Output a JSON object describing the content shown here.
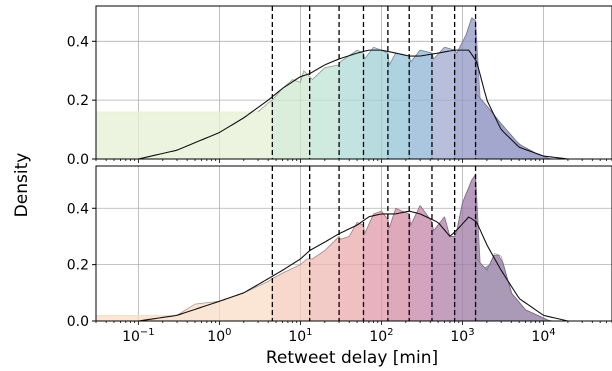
{
  "chart_data": {
    "type": "area",
    "xlabel": "Retweet delay [min]",
    "ylabel": "Density",
    "x_scale": "log",
    "xlim": [
      0.03,
      70000
    ],
    "x_ticks": [
      {
        "value": 0.1,
        "base": "10",
        "exp": "−1"
      },
      {
        "value": 1,
        "base": "10",
        "exp": "0"
      },
      {
        "value": 10,
        "base": "10",
        "exp": "1"
      },
      {
        "value": 100,
        "base": "10",
        "exp": "2"
      },
      {
        "value": 1000,
        "base": "10",
        "exp": "3"
      },
      {
        "value": 10000,
        "base": "10",
        "exp": "4"
      }
    ],
    "grid": true,
    "quantile_lines": [
      4.5,
      13,
      30,
      60,
      120,
      220,
      420,
      800,
      1450
    ],
    "panels": [
      {
        "name": "top",
        "ylim": [
          0,
          0.52
        ],
        "y_ticks": [
          {
            "value": 0,
            "label": "0.0"
          },
          {
            "value": 0.2,
            "label": "0.2"
          },
          {
            "value": 0.4,
            "label": "0.4"
          }
        ],
        "colors": [
          "#e6f0d4",
          "#cfe8cf",
          "#bfe3d4",
          "#aedad6",
          "#a0cfd6",
          "#94c3d6",
          "#8fb3d4",
          "#a0aacf",
          "#9096c4",
          "#8489bd"
        ],
        "kde": [
          [
            0.1,
            0.0
          ],
          [
            0.3,
            0.03
          ],
          [
            1,
            0.09
          ],
          [
            2,
            0.14
          ],
          [
            4,
            0.2
          ],
          [
            6,
            0.24
          ],
          [
            10,
            0.28
          ],
          [
            13,
            0.29
          ],
          [
            20,
            0.32
          ],
          [
            30,
            0.34
          ],
          [
            50,
            0.36
          ],
          [
            70,
            0.37
          ],
          [
            100,
            0.37
          ],
          [
            150,
            0.36
          ],
          [
            220,
            0.35
          ],
          [
            300,
            0.35
          ],
          [
            500,
            0.36
          ],
          [
            800,
            0.37
          ],
          [
            1200,
            0.37
          ],
          [
            1500,
            0.33
          ],
          [
            2000,
            0.2
          ],
          [
            3000,
            0.1
          ],
          [
            5000,
            0.04
          ],
          [
            10000,
            0.01
          ],
          [
            20000,
            0.0
          ]
        ],
        "hist": [
          [
            3,
            0.16
          ],
          [
            4,
            0.19
          ],
          [
            4.5,
            0.2
          ],
          [
            6,
            0.24
          ],
          [
            8,
            0.27
          ],
          [
            10,
            0.26
          ],
          [
            11,
            0.3
          ],
          [
            13,
            0.28
          ],
          [
            14,
            0.27
          ],
          [
            20,
            0.31
          ],
          [
            30,
            0.32
          ],
          [
            31,
            0.33
          ],
          [
            50,
            0.37
          ],
          [
            60,
            0.36
          ],
          [
            62,
            0.34
          ],
          [
            80,
            0.38
          ],
          [
            120,
            0.36
          ],
          [
            125,
            0.32
          ],
          [
            150,
            0.36
          ],
          [
            220,
            0.35
          ],
          [
            230,
            0.33
          ],
          [
            300,
            0.37
          ],
          [
            420,
            0.36
          ],
          [
            440,
            0.34
          ],
          [
            600,
            0.38
          ],
          [
            800,
            0.37
          ],
          [
            850,
            0.36
          ],
          [
            1100,
            0.42
          ],
          [
            1300,
            0.48
          ],
          [
            1450,
            0.47
          ],
          [
            1500,
            0.22
          ],
          [
            2000,
            0.18
          ],
          [
            3000,
            0.12
          ],
          [
            5000,
            0.05
          ],
          [
            8000,
            0.02
          ],
          [
            12000,
            0.0
          ]
        ]
      },
      {
        "name": "bottom",
        "ylim": [
          0,
          0.55
        ],
        "y_ticks": [
          {
            "value": 0,
            "label": "0.0"
          },
          {
            "value": 0.2,
            "label": "0.2"
          },
          {
            "value": 0.4,
            "label": "0.4"
          }
        ],
        "colors": [
          "#f9dcc6",
          "#f5cbbb",
          "#efbab3",
          "#e9a9ac",
          "#e09aa8",
          "#d48ca6",
          "#c585a8",
          "#b27fa8",
          "#9f7aa6",
          "#8d779f"
        ],
        "kde": [
          [
            0.1,
            0.0
          ],
          [
            0.3,
            0.02
          ],
          [
            1,
            0.07
          ],
          [
            2,
            0.1
          ],
          [
            4,
            0.15
          ],
          [
            6,
            0.18
          ],
          [
            10,
            0.22
          ],
          [
            13,
            0.25
          ],
          [
            20,
            0.28
          ],
          [
            30,
            0.31
          ],
          [
            50,
            0.34
          ],
          [
            70,
            0.37
          ],
          [
            100,
            0.38
          ],
          [
            150,
            0.38
          ],
          [
            220,
            0.39
          ],
          [
            300,
            0.38
          ],
          [
            500,
            0.35
          ],
          [
            700,
            0.3
          ],
          [
            900,
            0.33
          ],
          [
            1200,
            0.37
          ],
          [
            1500,
            0.35
          ],
          [
            2000,
            0.27
          ],
          [
            3000,
            0.18
          ],
          [
            5000,
            0.08
          ],
          [
            10000,
            0.02
          ],
          [
            20000,
            0.0
          ]
        ],
        "hist": [
          [
            0.3,
            0.02
          ],
          [
            0.5,
            0.06
          ],
          [
            1,
            0.07
          ],
          [
            2,
            0.1
          ],
          [
            4,
            0.14
          ],
          [
            4.5,
            0.15
          ],
          [
            6,
            0.17
          ],
          [
            10,
            0.2
          ],
          [
            12,
            0.22
          ],
          [
            13,
            0.22
          ],
          [
            14,
            0.22
          ],
          [
            20,
            0.25
          ],
          [
            30,
            0.3
          ],
          [
            31,
            0.29
          ],
          [
            40,
            0.3
          ],
          [
            50,
            0.35
          ],
          [
            60,
            0.34
          ],
          [
            62,
            0.31
          ],
          [
            80,
            0.38
          ],
          [
            100,
            0.39
          ],
          [
            120,
            0.36
          ],
          [
            125,
            0.33
          ],
          [
            150,
            0.4
          ],
          [
            180,
            0.39
          ],
          [
            220,
            0.38
          ],
          [
            230,
            0.34
          ],
          [
            300,
            0.41
          ],
          [
            400,
            0.36
          ],
          [
            420,
            0.35
          ],
          [
            440,
            0.32
          ],
          [
            600,
            0.37
          ],
          [
            700,
            0.3
          ],
          [
            800,
            0.3
          ],
          [
            850,
            0.32
          ],
          [
            1000,
            0.42
          ],
          [
            1300,
            0.5
          ],
          [
            1450,
            0.52
          ],
          [
            1500,
            0.22
          ],
          [
            2000,
            0.18
          ],
          [
            2500,
            0.24
          ],
          [
            3000,
            0.23
          ],
          [
            4000,
            0.1
          ],
          [
            6000,
            0.04
          ],
          [
            12000,
            0.0
          ]
        ]
      }
    ]
  }
}
